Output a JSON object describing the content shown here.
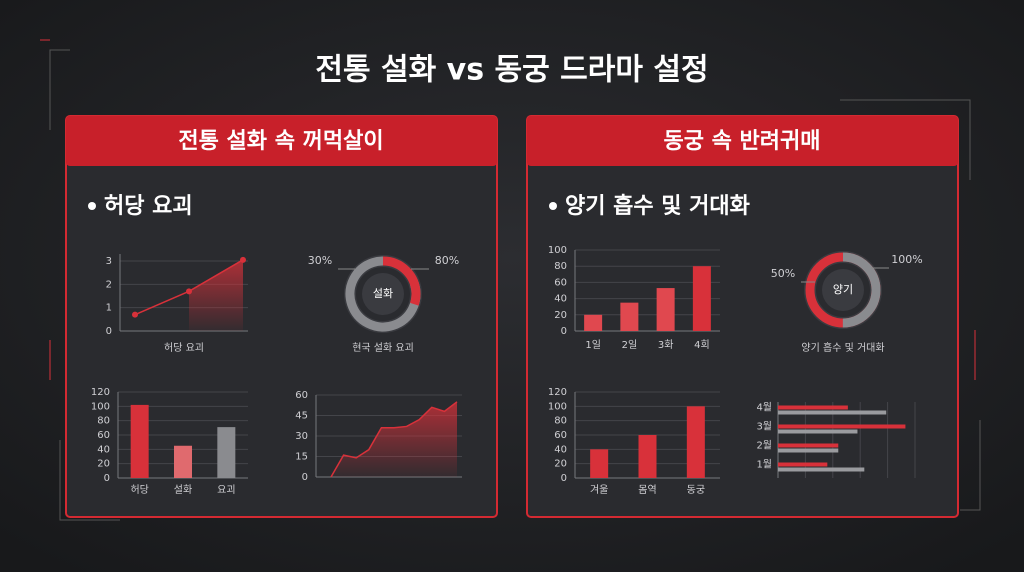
{
  "header": {
    "title": "전통 설화 vs 동궁 드라마 설정"
  },
  "panels": [
    {
      "title": "전통 설화 속 꺼먹살이",
      "bullet": "허당 요괴"
    },
    {
      "title": "동궁 속 반려귀매",
      "bullet": "양기 흡수 및 거대화"
    }
  ],
  "chart_data": [
    {
      "type": "line",
      "categories": [
        null,
        null,
        null
      ],
      "values": [
        0.7,
        1.7,
        3.05
      ],
      "color": "#d8313a",
      "ylim": [
        0,
        3.3
      ],
      "yticks": [
        0,
        1,
        2,
        3
      ],
      "xlabel": "허당 요괴",
      "grid": true
    },
    {
      "type": "donut",
      "center_label": "설화",
      "caption": "현국 설화 요괴",
      "values": [
        30,
        80
      ],
      "value_labels": [
        "30%",
        "80%"
      ],
      "colors": [
        "#d8313a",
        "#8a8b8f"
      ]
    },
    {
      "type": "bar",
      "categories": [
        "허당",
        "설화",
        "요괴"
      ],
      "values": [
        102,
        45,
        71
      ],
      "colors": [
        "#d8313a",
        "#e06a6e",
        "#8a8b8f"
      ],
      "ylim": [
        0,
        120
      ],
      "yticks": [
        0,
        20,
        40,
        60,
        80,
        100,
        120
      ],
      "grid": true
    },
    {
      "type": "area",
      "categories": [
        null,
        null,
        null,
        null,
        null,
        null,
        null,
        null,
        null,
        null,
        null
      ],
      "values": [
        0,
        16,
        14,
        20,
        36,
        36,
        37,
        42,
        51,
        48,
        55
      ],
      "color": "#d8313a",
      "ylim": [
        0,
        60
      ],
      "yticks": [
        0,
        15,
        30,
        45,
        60
      ],
      "grid": true
    },
    {
      "type": "bar",
      "categories": [
        "1일",
        "2일",
        "3화",
        "4회"
      ],
      "values": [
        20,
        35,
        53,
        80
      ],
      "colors": [
        "#e0484f",
        "#e0484f",
        "#e0484f",
        "#d8313a"
      ],
      "ylim": [
        0,
        100
      ],
      "yticks": [
        0,
        20,
        40,
        60,
        80,
        100
      ],
      "grid": true
    },
    {
      "type": "donut",
      "center_label": "양기",
      "caption": "양기 흡수 및 거대화",
      "values": [
        50,
        100
      ],
      "value_labels": [
        "50%",
        "100%"
      ],
      "colors": [
        "#8a8b8f",
        "#d8313a"
      ]
    },
    {
      "type": "bar",
      "categories": [
        "겨울",
        "몸역",
        "동궁"
      ],
      "values": [
        40,
        60,
        100
      ],
      "colors": [
        "#d8313a",
        "#d8313a",
        "#d8313a"
      ],
      "ylim": [
        0,
        120
      ],
      "yticks": [
        0,
        20,
        40,
        60,
        80,
        100,
        120
      ],
      "grid": true
    },
    {
      "type": "hbar",
      "categories": [
        "1월",
        "2월",
        "3월",
        "4월"
      ],
      "series": [
        {
          "color": "#d8313a",
          "values": [
            36,
            44,
            93,
            51
          ]
        },
        {
          "color": "#9a9b9f",
          "values": [
            63,
            44,
            58,
            79
          ]
        }
      ],
      "xlim": [
        0,
        100
      ],
      "grid": true
    }
  ]
}
